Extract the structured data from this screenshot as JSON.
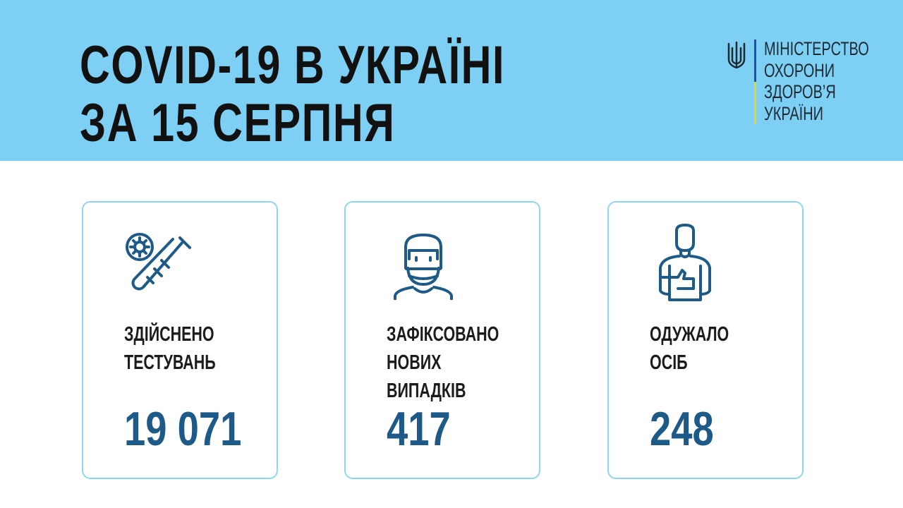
{
  "header": {
    "title_line1": "COVID-19 В УКРАЇНІ",
    "title_line2": "ЗА 15 СЕРПНЯ"
  },
  "ministry": {
    "lines": [
      "МІНІСТЕРСТВО",
      "ОХОРОНИ",
      "ЗДОРОВ’Я",
      "УКРАЇНИ"
    ],
    "emblem": "trident-icon"
  },
  "colors": {
    "band": "#7dd0f3",
    "accent": "#1e5a87",
    "card_border": "#90d5f0",
    "flag_blue": "#1f4fa8",
    "flag_yellow": "#f3d21a"
  },
  "cards": [
    {
      "icon": "test-tube-virus-icon",
      "label_lines": [
        "ЗДІЙСНЕНО",
        "ТЕСТУВАНЬ"
      ],
      "value": "19 071"
    },
    {
      "icon": "masked-person-icon",
      "label_lines": [
        "ЗАФІКСОВАНО",
        "НОВИХ",
        "ВИПАДКІВ"
      ],
      "value": "417"
    },
    {
      "icon": "thumbs-up-person-icon",
      "label_lines": [
        "ОДУЖАЛО",
        "ОСІБ"
      ],
      "value": "248"
    }
  ]
}
